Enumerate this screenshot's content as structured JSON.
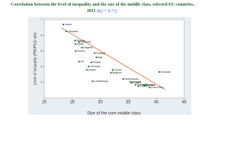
{
  "chart_data": {
    "type": "scatter",
    "title": "Correlation between the level of inequality and the size of the middle class, selected EU countries, 2011",
    "title_note": "(R2 = 0.71)",
    "x_label": "Size of the core middle class",
    "y_label": "Level of inequality (P90/P10) ratio",
    "xlim": [
      20,
      45
    ],
    "xticks": [
      20,
      25,
      30,
      35,
      40,
      45
    ],
    "ylim": [
      2,
      7
    ],
    "yticks": [
      3,
      4,
      5,
      6,
      7
    ],
    "color": "#1f6b2a",
    "trend_color": "#e8724a",
    "trendline": {
      "x": [
        23.1,
        41.6
      ],
      "y": [
        6.46,
        2.54
      ]
    },
    "points": {
      "labels": [
        "Latvia",
        "Lithuania",
        "Estonia",
        "Romania",
        "Spain",
        "Bulgaria",
        "Greece",
        "Portugal",
        "Italy",
        "UK",
        "Poland",
        "Germany",
        "Ireland",
        "Luxembourg",
        "France",
        "Belgium",
        "Denmark",
        "Netherlands",
        "Hungary",
        "Austria",
        "Slovenia",
        "Finland",
        "Slovakia",
        "Sweden",
        "Czech Rep"
      ],
      "x": [
        23.4,
        23.9,
        25.5,
        26.2,
        25.6,
        26.7,
        25.6,
        29.0,
        29.3,
        26.2,
        28.4,
        27.9,
        27.6,
        28.6,
        32.2,
        31.9,
        40.5,
        34.1,
        35.4,
        35.6,
        36.3,
        36.8,
        37.8,
        38.0,
        38.8
      ],
      "y": [
        6.69,
        6.25,
        5.66,
        5.57,
        5.44,
        5.21,
        4.99,
        4.86,
        4.59,
        4.32,
        4.27,
        4.01,
        3.79,
        3.07,
        3.79,
        3.61,
        3.66,
        3.21,
        3.03,
        2.97,
        2.84,
        2.75,
        2.84,
        2.8,
        2.67
      ]
    }
  }
}
